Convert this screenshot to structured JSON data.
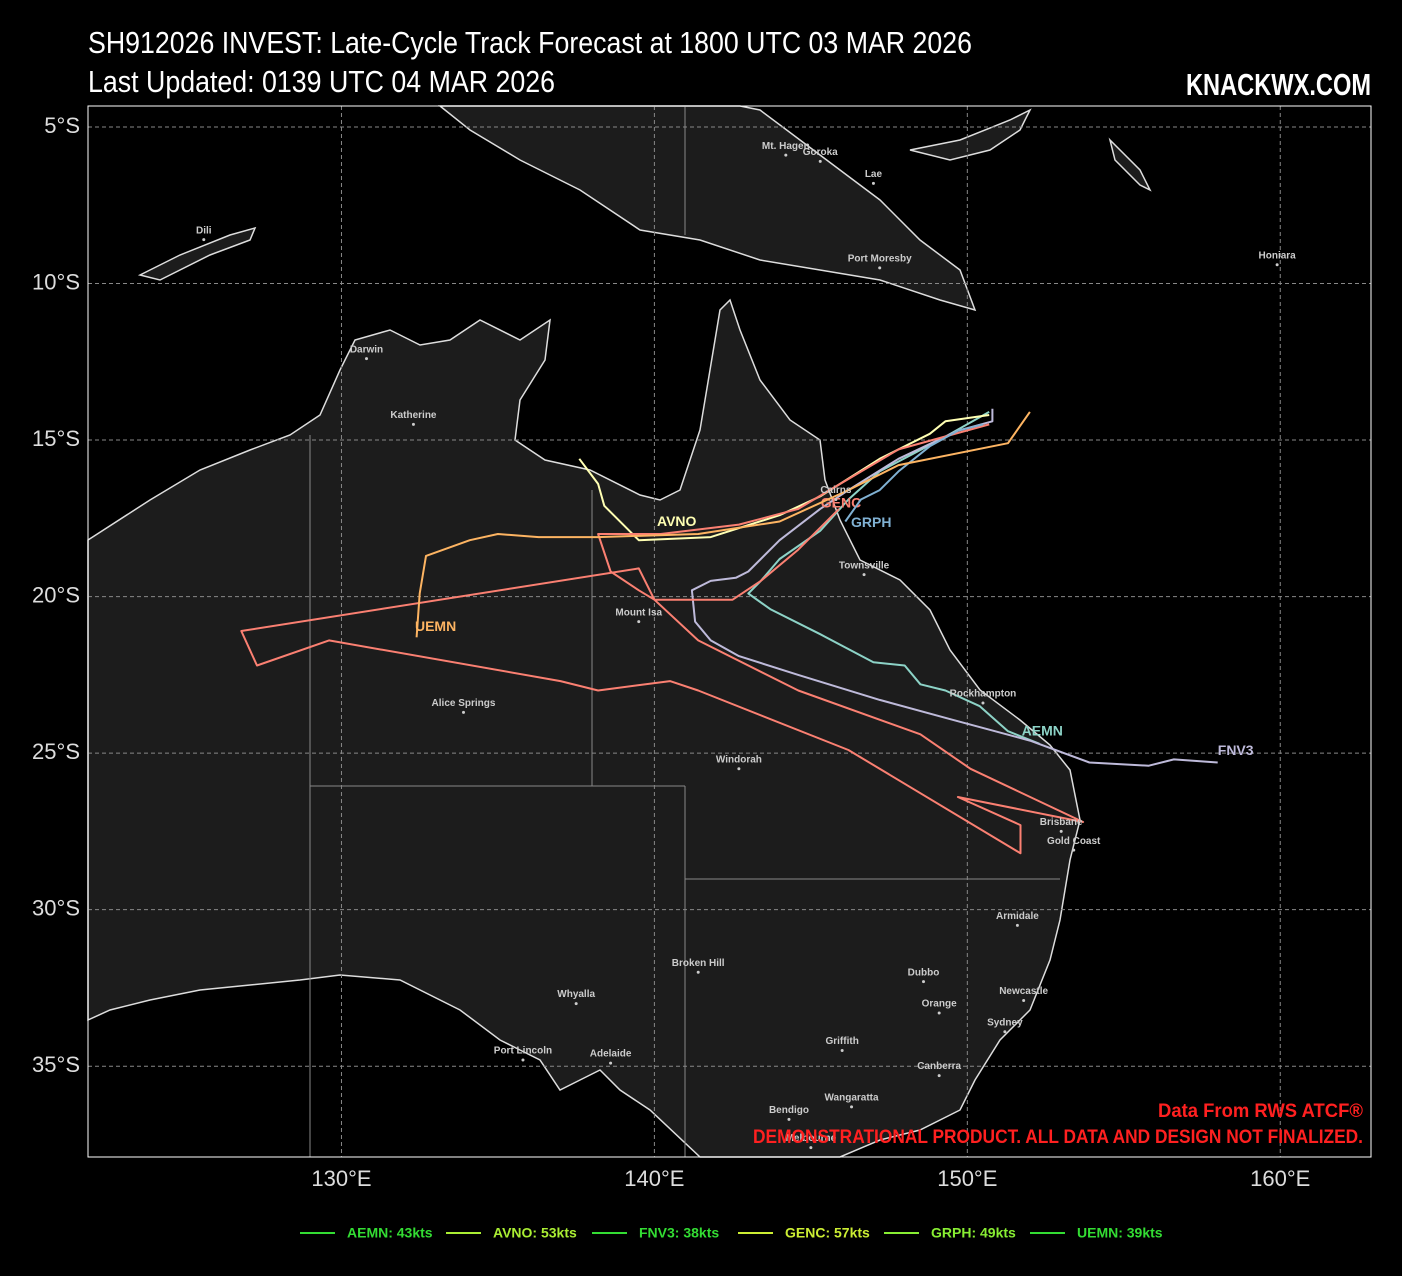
{
  "header": {
    "title": "SH912026 INVEST: Late-Cycle Track Forecast at 1800 UTC 03 MAR 2026",
    "subtitle": "Last Updated: 0139 UTC 04 MAR 2026",
    "brand": "KNACKWX.COM"
  },
  "notes": [
    "Data From RWS ATCF®",
    "DEMONSTRATIONAL PRODUCT. ALL DATA AND DESIGN NOT FINALIZED."
  ],
  "map": {
    "xlim": [
      121.9,
      162.9
    ],
    "ylim": [
      -4.33,
      -37.9
    ],
    "grid": true,
    "xticks": [
      {
        "value": 130,
        "label": "130°E"
      },
      {
        "value": 140,
        "label": "140°E"
      },
      {
        "value": 150,
        "label": "150°E"
      },
      {
        "value": 160,
        "label": "160°E"
      }
    ],
    "yticks": [
      {
        "value": -5,
        "label": "5°S"
      },
      {
        "value": -10,
        "label": "10°S"
      },
      {
        "value": -15,
        "label": "15°S"
      },
      {
        "value": -20,
        "label": "20°S"
      },
      {
        "value": -25,
        "label": "25°S"
      },
      {
        "value": -30,
        "label": "30°S"
      },
      {
        "value": -35,
        "label": "35°S"
      }
    ],
    "tracks": [
      {
        "name": "AEMN",
        "color": "#8dd3c7",
        "lon": [
          150.7,
          149.1,
          147.2,
          146.2,
          145.3,
          144.0,
          143.4,
          143.0,
          143.7,
          145.3,
          147.0,
          148.0,
          148.5,
          149.3,
          150.4,
          151.3,
          152.3
        ],
        "lat": [
          -14.1,
          -15.0,
          -16.0,
          -16.9,
          -17.9,
          -18.8,
          -19.5,
          -19.9,
          -20.4,
          -21.2,
          -22.1,
          -22.2,
          -22.8,
          -23.0,
          -23.5,
          -24.3,
          -24.7
        ]
      },
      {
        "name": "AVNO",
        "color": "#ffffb3",
        "lon": [
          150.7,
          149.3,
          148.8,
          147.2,
          145.3,
          144.0,
          141.8,
          139.5,
          139.0,
          138.4,
          138.2,
          137.6
        ],
        "lat": [
          -14.2,
          -14.4,
          -14.8,
          -15.6,
          -16.8,
          -17.4,
          -18.1,
          -18.2,
          -17.7,
          -17.1,
          -16.4,
          -15.6
        ]
      },
      {
        "name": "FNV3",
        "color": "#bebada",
        "lon": [
          150.8,
          150.8,
          149.7,
          147.8,
          146.2,
          145.3,
          144.0,
          143.0,
          142.6,
          141.8,
          141.2,
          141.3,
          141.8,
          142.7,
          144.6,
          147.2,
          149.4,
          152.0,
          153.9,
          155.8,
          156.6,
          158.0
        ],
        "lat": [
          -14.0,
          -14.4,
          -14.7,
          -15.6,
          -16.6,
          -17.2,
          -18.2,
          -19.2,
          -19.4,
          -19.5,
          -19.8,
          -20.8,
          -21.4,
          -21.9,
          -22.5,
          -23.3,
          -23.9,
          -24.6,
          -25.3,
          -25.4,
          -25.2,
          -25.3
        ]
      },
      {
        "name": "GENC",
        "color": "#fb8072",
        "lon": [
          150.7,
          147.8,
          145.6,
          144.6,
          142.7,
          140.2,
          138.2,
          138.6,
          139.5,
          140.0,
          141.4,
          144.6,
          148.5,
          150.1,
          153.7,
          149.7,
          151.7,
          151.7,
          146.2,
          141.4,
          140.5,
          138.2,
          137.0,
          129.6,
          127.3,
          126.8,
          139.5,
          140.0,
          142.5,
          143.4,
          144.6,
          145.9
        ],
        "lat": [
          -14.5,
          -15.3,
          -16.6,
          -17.2,
          -17.7,
          -18.0,
          -18.0,
          -19.2,
          -19.8,
          -20.1,
          -21.4,
          -23.0,
          -24.4,
          -25.5,
          -27.2,
          -26.4,
          -27.3,
          -28.2,
          -24.9,
          -23.0,
          -22.7,
          -23.0,
          -22.7,
          -21.4,
          -22.2,
          -21.1,
          -19.1,
          -20.1,
          -20.1,
          -19.5,
          -18.5,
          -17.2
        ]
      },
      {
        "name": "GRPH",
        "color": "#80b1d3",
        "lon": [
          150.5,
          149.7,
          148.8,
          147.8,
          147.2,
          146.6,
          146.1
        ],
        "lat": [
          -14.5,
          -14.7,
          -15.2,
          -16.0,
          -16.6,
          -16.9,
          -17.6
        ]
      },
      {
        "name": "UEMN",
        "color": "#fdb462",
        "lon": [
          152.0,
          151.3,
          147.8,
          146.2,
          144.0,
          141.4,
          138.2,
          136.3,
          135.0,
          134.1,
          132.7,
          132.5,
          132.4
        ],
        "lat": [
          -14.1,
          -15.1,
          -15.8,
          -16.6,
          -17.6,
          -18.0,
          -18.1,
          -18.1,
          -18.0,
          -18.2,
          -18.7,
          -19.9,
          -21.3
        ]
      }
    ],
    "cities": [
      {
        "name": "Mt. Hagen",
        "lon": 144.2,
        "lat": -5.9
      },
      {
        "name": "Goroka",
        "lon": 145.3,
        "lat": -6.1
      },
      {
        "name": "Lae",
        "lon": 147.0,
        "lat": -6.8
      },
      {
        "name": "Port Moresby",
        "lon": 147.2,
        "lat": -9.5
      },
      {
        "name": "Honiara",
        "lon": 159.9,
        "lat": -9.4
      },
      {
        "name": "Dili",
        "lon": 125.6,
        "lat": -8.6
      },
      {
        "name": "Darwin",
        "lon": 130.8,
        "lat": -12.4
      },
      {
        "name": "Katherine",
        "lon": 132.3,
        "lat": -14.5
      },
      {
        "name": "Cairns",
        "lon": 145.8,
        "lat": -16.9
      },
      {
        "name": "Townsville",
        "lon": 146.7,
        "lat": -19.3
      },
      {
        "name": "Mount Isa",
        "lon": 139.5,
        "lat": -20.8
      },
      {
        "name": "Rockhampton",
        "lon": 150.5,
        "lat": -23.4
      },
      {
        "name": "Alice Springs",
        "lon": 133.9,
        "lat": -23.7
      },
      {
        "name": "Windorah",
        "lon": 142.7,
        "lat": -25.5
      },
      {
        "name": "Brisbane",
        "lon": 153.0,
        "lat": -27.5
      },
      {
        "name": "Gold Coast",
        "lon": 153.4,
        "lat": -28.1
      },
      {
        "name": "Armidale",
        "lon": 151.6,
        "lat": -30.5
      },
      {
        "name": "Broken Hill",
        "lon": 141.4,
        "lat": -32.0
      },
      {
        "name": "Dubbo",
        "lon": 148.6,
        "lat": -32.3
      },
      {
        "name": "Newcastle",
        "lon": 151.8,
        "lat": -32.9
      },
      {
        "name": "Orange",
        "lon": 149.1,
        "lat": -33.3
      },
      {
        "name": "Whyalla",
        "lon": 137.5,
        "lat": -33.0
      },
      {
        "name": "Sydney",
        "lon": 151.2,
        "lat": -33.9
      },
      {
        "name": "Port Lincoln",
        "lon": 135.8,
        "lat": -34.8
      },
      {
        "name": "Adelaide",
        "lon": 138.6,
        "lat": -34.9
      },
      {
        "name": "Griffith",
        "lon": 146.0,
        "lat": -34.5
      },
      {
        "name": "Canberra",
        "lon": 149.1,
        "lat": -35.3
      },
      {
        "name": "Wangaratta",
        "lon": 146.3,
        "lat": -36.3
      },
      {
        "name": "Bendigo",
        "lon": 144.3,
        "lat": -36.7
      },
      {
        "name": "Melbourne",
        "lon": 145.0,
        "lat": -37.6
      }
    ]
  },
  "legend": [
    {
      "label": "AEMN: 43kts",
      "color": "#33dd33"
    },
    {
      "label": "AVNO: 53kts",
      "color": "#aaee33"
    },
    {
      "label": "FNV3: 38kts",
      "color": "#33dd33"
    },
    {
      "label": "GENC: 57kts",
      "color": "#ccee33"
    },
    {
      "label": "GRPH: 49kts",
      "color": "#88ee33"
    },
    {
      "label": "UEMN: 39kts",
      "color": "#33dd33"
    }
  ]
}
